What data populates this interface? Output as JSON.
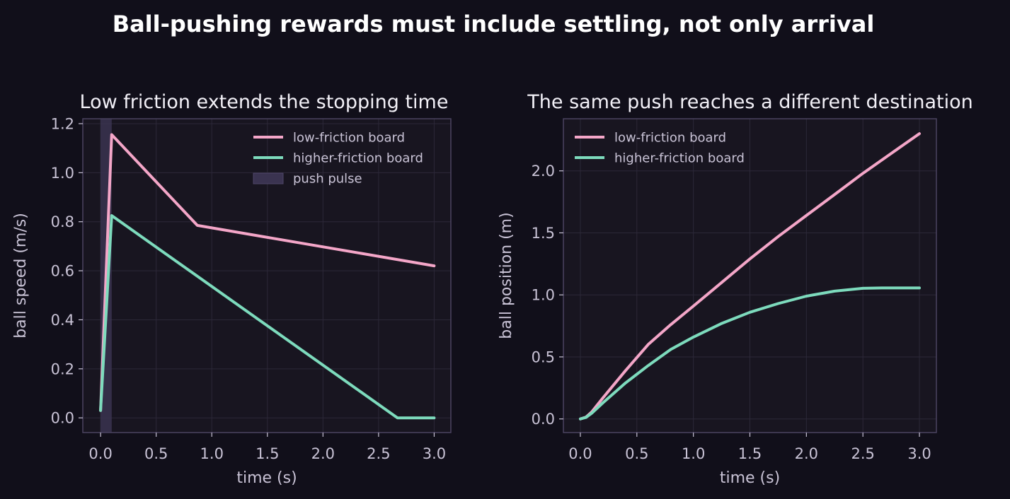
{
  "title": "Ball-pushing rewards must include settling, not only arrival",
  "colors": {
    "background": "#110f1a",
    "axes_face": "#181520",
    "spine": "#4a4360",
    "grid": "#2c2838",
    "low_friction": "#f4a6c8",
    "higher_friction": "#7ddbbd",
    "push_pulse": "#3a3350"
  },
  "chart_data": [
    {
      "type": "line",
      "title": "Low friction extends the stopping time",
      "xlabel": "time (s)",
      "ylabel": "ball speed (m/s)",
      "xlim": [
        -0.16,
        3.15
      ],
      "ylim": [
        -0.06,
        1.22
      ],
      "xticks": [
        0.0,
        0.5,
        1.0,
        1.5,
        2.0,
        2.5,
        3.0
      ],
      "xtick_labels": [
        "0.0",
        "0.5",
        "1.0",
        "1.5",
        "2.0",
        "2.5",
        "3.0"
      ],
      "yticks": [
        0.0,
        0.2,
        0.4,
        0.6,
        0.8,
        1.0,
        1.2
      ],
      "ytick_labels": [
        "0.0",
        "0.2",
        "0.4",
        "0.6",
        "0.8",
        "1.0",
        "1.2"
      ],
      "grid": true,
      "legend_position": "top-right",
      "span": {
        "name": "push pulse",
        "x0": 0.0,
        "x1": 0.1
      },
      "series": [
        {
          "name": "low-friction board",
          "color_key": "low_friction",
          "x": [
            0.0,
            0.1,
            0.87,
            3.0
          ],
          "y": [
            0.03,
            1.155,
            0.785,
            0.62
          ]
        },
        {
          "name": "higher-friction board",
          "color_key": "higher_friction",
          "x": [
            0.0,
            0.1,
            2.67,
            3.0
          ],
          "y": [
            0.03,
            0.825,
            0.0,
            0.0
          ]
        }
      ]
    },
    {
      "type": "line",
      "title": "The same push reaches a different destination",
      "xlabel": "time (s)",
      "ylabel": "ball position (m)",
      "xlim": [
        -0.15,
        3.15
      ],
      "ylim": [
        -0.11,
        2.42
      ],
      "xticks": [
        0.0,
        0.5,
        1.0,
        1.5,
        2.0,
        2.5,
        3.0
      ],
      "xtick_labels": [
        "0.0",
        "0.5",
        "1.0",
        "1.5",
        "2.0",
        "2.5",
        "3.0"
      ],
      "yticks": [
        0.0,
        0.5,
        1.0,
        1.5,
        2.0
      ],
      "ytick_labels": [
        "0.0",
        "0.5",
        "1.0",
        "1.5",
        "2.0"
      ],
      "grid": true,
      "legend_position": "top-left",
      "series": [
        {
          "name": "low-friction board",
          "color_key": "low_friction",
          "x": [
            0.0,
            0.05,
            0.1,
            0.2,
            0.4,
            0.6,
            0.8,
            1.0,
            1.25,
            1.5,
            1.75,
            2.0,
            2.25,
            2.5,
            2.75,
            3.0
          ],
          "y": [
            0.0,
            0.015,
            0.055,
            0.17,
            0.39,
            0.6,
            0.76,
            0.91,
            1.1,
            1.29,
            1.47,
            1.64,
            1.81,
            1.98,
            2.14,
            2.3
          ]
        },
        {
          "name": "higher-friction board",
          "color_key": "higher_friction",
          "x": [
            0.0,
            0.05,
            0.1,
            0.2,
            0.4,
            0.6,
            0.8,
            1.0,
            1.25,
            1.5,
            1.75,
            2.0,
            2.25,
            2.5,
            2.67,
            2.8,
            3.0
          ],
          "y": [
            0.0,
            0.012,
            0.045,
            0.13,
            0.29,
            0.43,
            0.56,
            0.66,
            0.77,
            0.86,
            0.93,
            0.99,
            1.03,
            1.053,
            1.056,
            1.056,
            1.056
          ]
        }
      ]
    }
  ]
}
